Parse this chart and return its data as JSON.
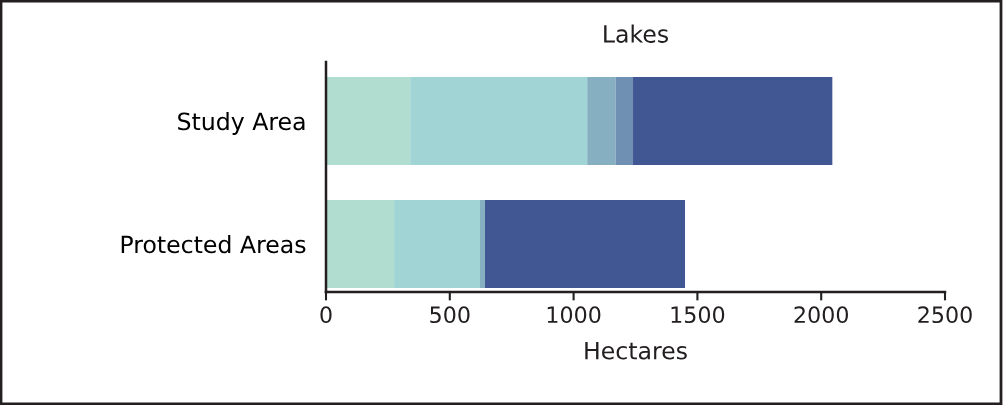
{
  "chart_data": {
    "type": "bar",
    "orientation": "horizontal",
    "stacked": true,
    "title": "Lakes",
    "xlabel": "Hectares",
    "categories": [
      "Study Area",
      "Protected Areas"
    ],
    "series": [
      {
        "color": "#b1ddd0",
        "values": [
          340,
          275
        ]
      },
      {
        "color": "#a0d4d5",
        "values": [
          715,
          347
        ]
      },
      {
        "color": "#86afc1",
        "values": [
          115,
          20
        ]
      },
      {
        "color": "#6f8fb3",
        "values": [
          70,
          0
        ]
      },
      {
        "color": "#415793",
        "values": [
          805,
          808
        ]
      }
    ],
    "xlim": [
      0,
      2500
    ],
    "xticks": [
      0,
      500,
      1000,
      1500,
      2000,
      2500
    ],
    "grid": false,
    "legend": false
  }
}
